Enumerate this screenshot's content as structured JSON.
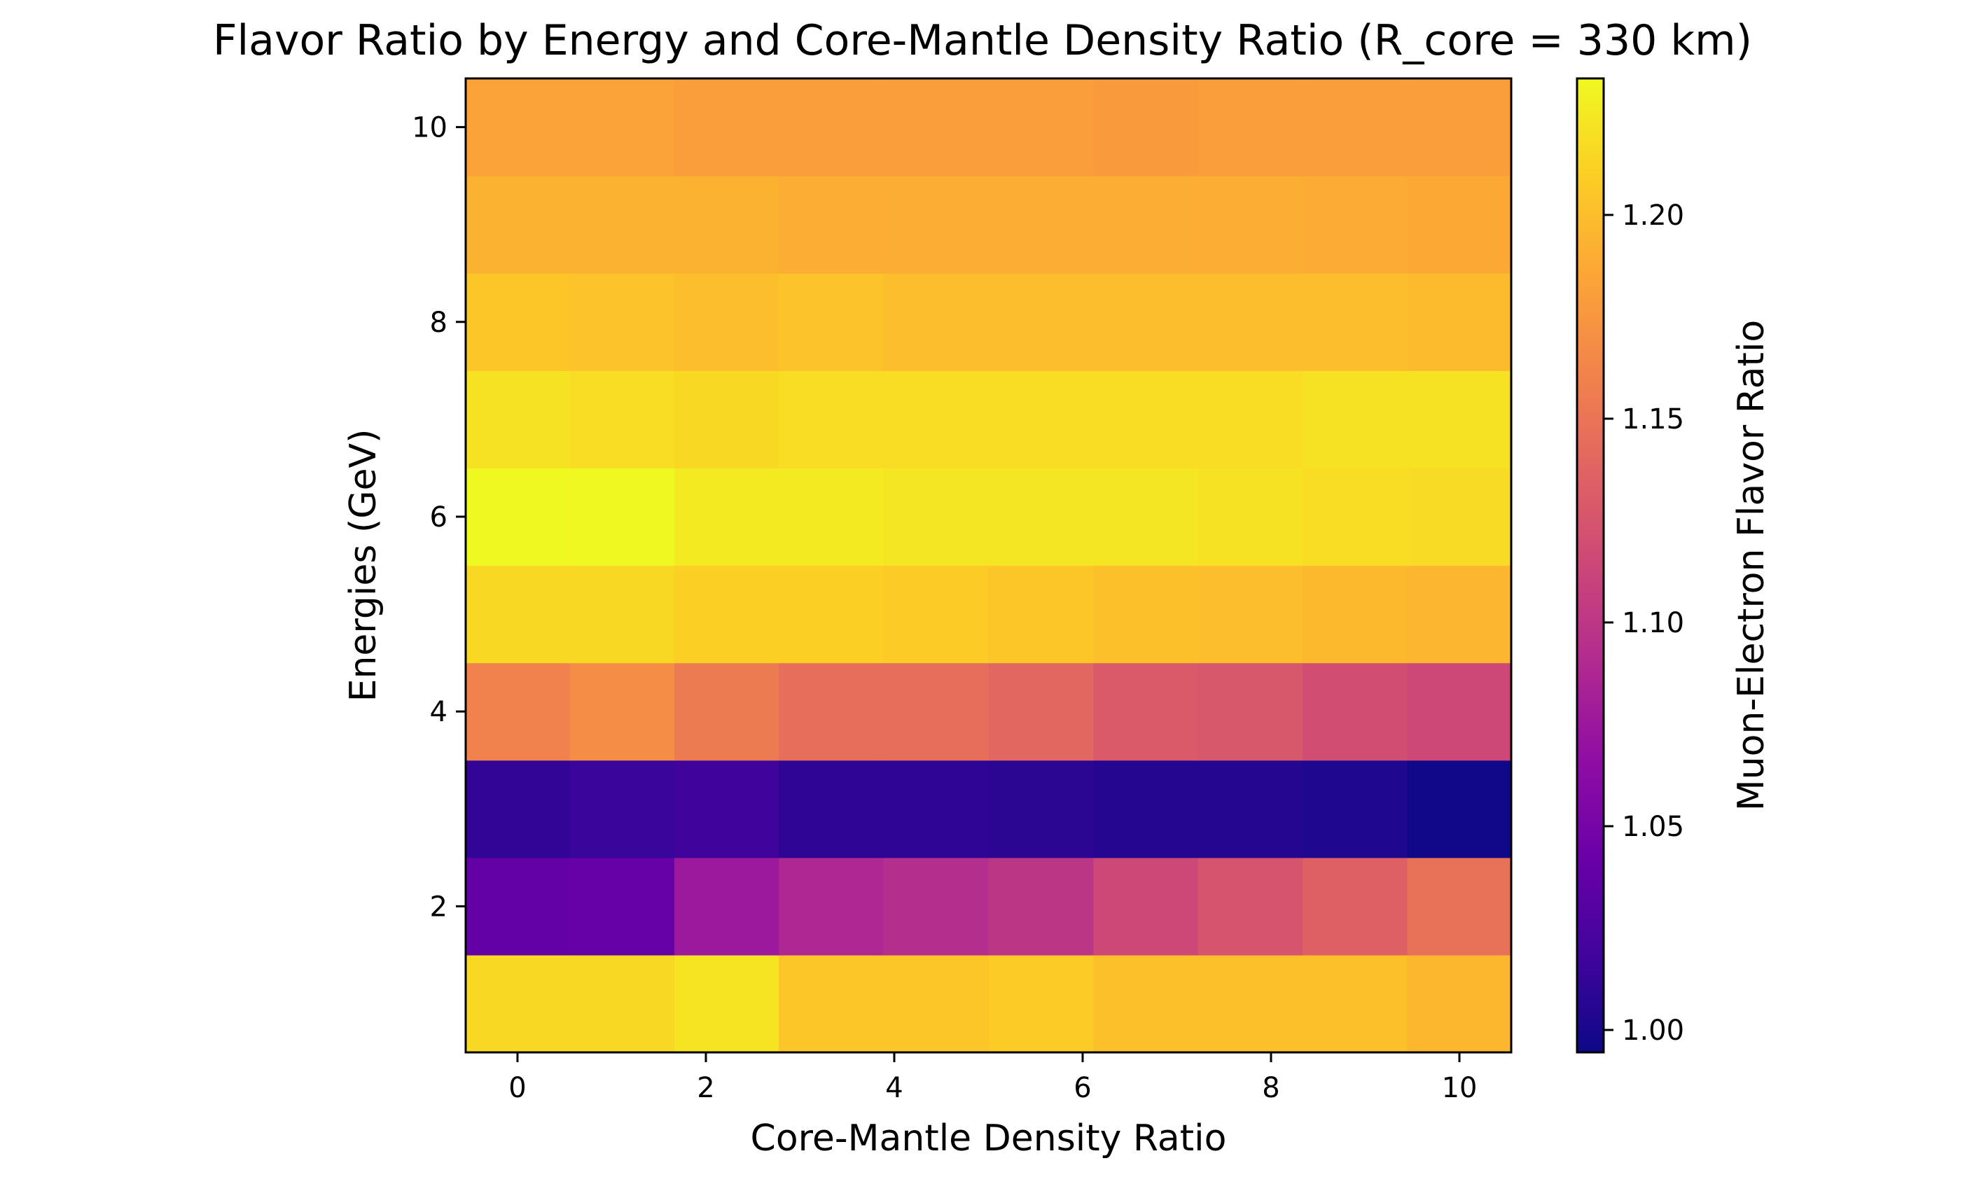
{
  "chart_data": {
    "type": "heatmap",
    "title": "Flavor Ratio by Energy and Core-Mantle Density Ratio (R_core = 330 km)",
    "xlabel": "Core-Mantle Density Ratio",
    "ylabel": "Energies (GeV)",
    "colorbar_label": "Muon-Electron Flavor Ratio",
    "colormap": "plasma",
    "x_ticks": [
      0,
      2,
      4,
      6,
      8,
      10
    ],
    "x_tick_labels": [
      "0",
      "2",
      "4",
      "6",
      "8",
      "10"
    ],
    "y_ticks": [
      2,
      4,
      6,
      8,
      10
    ],
    "y_tick_labels": [
      "2",
      "4",
      "6",
      "8",
      "10"
    ],
    "colorbar_ticks": [
      1.0,
      1.05,
      1.1,
      1.15,
      1.2
    ],
    "colorbar_tick_labels": [
      "1.00",
      "1.05",
      "1.10",
      "1.15",
      "1.20"
    ],
    "xlim": [
      -0.55,
      10.55
    ],
    "ylim": [
      0.5,
      10.5
    ],
    "vmin": 0.9945,
    "vmax": 1.2335,
    "x": [
      0.0,
      1.11,
      2.22,
      3.33,
      4.44,
      5.56,
      6.67,
      7.78,
      8.89,
      10.0
    ],
    "y": [
      1,
      2,
      3,
      4,
      5,
      6,
      7,
      8,
      9,
      10
    ],
    "z": [
      [
        1.215,
        1.215,
        1.222,
        1.205,
        1.205,
        1.208,
        1.202,
        1.202,
        1.202,
        1.196
      ],
      [
        1.038,
        1.04,
        1.075,
        1.088,
        1.093,
        1.1,
        1.115,
        1.125,
        1.135,
        1.148
      ],
      [
        1.012,
        1.015,
        1.018,
        1.01,
        1.01,
        1.008,
        1.005,
        1.005,
        1.003,
        0.996
      ],
      [
        1.16,
        1.168,
        1.155,
        1.145,
        1.145,
        1.14,
        1.13,
        1.128,
        1.12,
        1.115
      ],
      [
        1.215,
        1.215,
        1.21,
        1.21,
        1.208,
        1.205,
        1.202,
        1.2,
        1.197,
        1.195
      ],
      [
        1.233,
        1.233,
        1.225,
        1.225,
        1.223,
        1.223,
        1.223,
        1.22,
        1.218,
        1.217
      ],
      [
        1.22,
        1.218,
        1.215,
        1.218,
        1.218,
        1.218,
        1.218,
        1.218,
        1.22,
        1.22
      ],
      [
        1.205,
        1.203,
        1.2,
        1.203,
        1.2,
        1.2,
        1.2,
        1.2,
        1.2,
        1.198
      ],
      [
        1.193,
        1.193,
        1.193,
        1.19,
        1.19,
        1.19,
        1.19,
        1.19,
        1.189,
        1.187
      ],
      [
        1.183,
        1.183,
        1.18,
        1.18,
        1.18,
        1.18,
        1.178,
        1.18,
        1.18,
        1.18
      ]
    ]
  }
}
